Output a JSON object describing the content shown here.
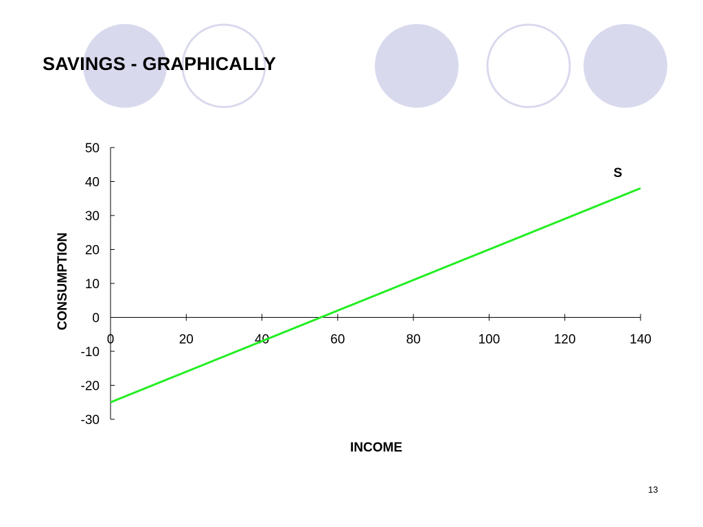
{
  "slide": {
    "title": "SAVINGS - GRAPHICALLY",
    "page_number": "13"
  },
  "colors": {
    "circle_fill": "#d9d9ee",
    "circle_stroke": "#d9d9ee",
    "line": "#22ee22",
    "axis": "#000000"
  },
  "chart_data": {
    "type": "line",
    "xlabel": "INCOME",
    "ylabel": "CONSUMPTION",
    "xlim": [
      0,
      140
    ],
    "ylim": [
      -30,
      50
    ],
    "x_ticks": [
      0,
      20,
      40,
      60,
      80,
      100,
      120,
      140
    ],
    "y_ticks": [
      50,
      40,
      30,
      20,
      10,
      0,
      -10,
      -20,
      -30
    ],
    "grid": false,
    "legend": "none",
    "series": [
      {
        "name": "S",
        "x": [
          0,
          140
        ],
        "y": [
          -25,
          38
        ]
      }
    ]
  }
}
